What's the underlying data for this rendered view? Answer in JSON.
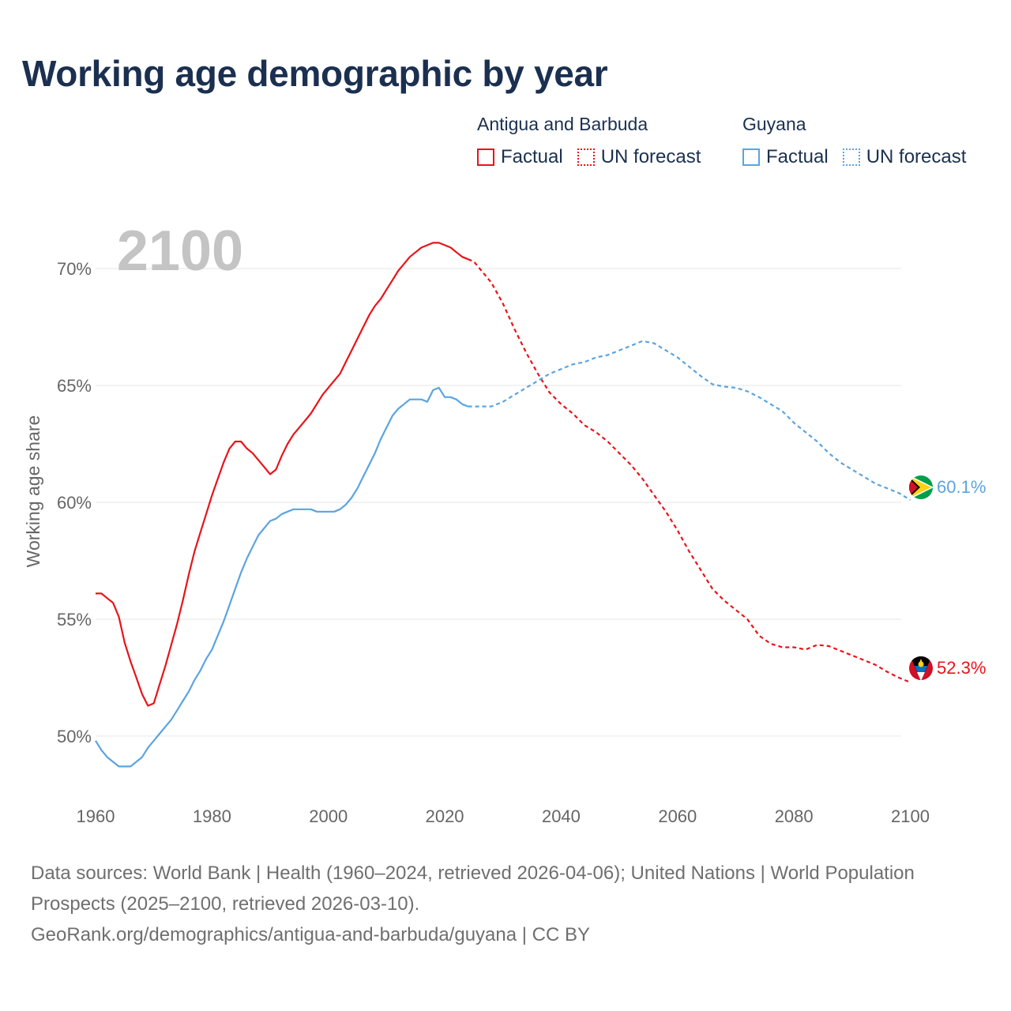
{
  "title": "Working age demographic by year",
  "legend": [
    {
      "country": "Antigua and Barbuda",
      "factual_label": "Factual",
      "forecast_label": "UN forecast",
      "color": "#e8141a"
    },
    {
      "country": "Guyana",
      "factual_label": "Factual",
      "forecast_label": "UN forecast",
      "color": "#5ba4e0"
    }
  ],
  "year_watermark": "2100",
  "chart_data": {
    "type": "line",
    "title": "Working age demographic by year",
    "xlabel": "",
    "ylabel": "Working age share",
    "xlim": [
      1960,
      2104
    ],
    "ylim": [
      47.7,
      72.5
    ],
    "x_ticks": [
      1960,
      1980,
      2000,
      2020,
      2040,
      2060,
      2080,
      2100
    ],
    "x_tick_labels": [
      "1960",
      "1980",
      "2000",
      "2020",
      "2040",
      "2060",
      "2080",
      "2100"
    ],
    "y_ticks": [
      50,
      55,
      60,
      65,
      70
    ],
    "y_tick_labels": [
      "50%",
      "55%",
      "60%",
      "65%",
      "70%"
    ],
    "grid": true,
    "forecast_start_year": 2025,
    "series": [
      {
        "name": "Antigua and Barbuda",
        "color": "#e8141a",
        "end_label": "52.3%",
        "flag": "antigua-and-barbuda-flag",
        "factual": [
          [
            1960,
            56.1
          ],
          [
            1961,
            56.1
          ],
          [
            1962,
            55.9
          ],
          [
            1963,
            55.7
          ],
          [
            1964,
            55.1
          ],
          [
            1965,
            54.0
          ],
          [
            1966,
            53.2
          ],
          [
            1967,
            52.5
          ],
          [
            1968,
            51.8
          ],
          [
            1969,
            51.3
          ],
          [
            1970,
            51.4
          ],
          [
            1971,
            52.2
          ],
          [
            1972,
            53.0
          ],
          [
            1973,
            53.9
          ],
          [
            1974,
            54.8
          ],
          [
            1975,
            55.8
          ],
          [
            1976,
            56.9
          ],
          [
            1977,
            57.9
          ],
          [
            1978,
            58.7
          ],
          [
            1979,
            59.5
          ],
          [
            1980,
            60.3
          ],
          [
            1981,
            61.0
          ],
          [
            1982,
            61.7
          ],
          [
            1983,
            62.3
          ],
          [
            1984,
            62.6
          ],
          [
            1985,
            62.6
          ],
          [
            1986,
            62.3
          ],
          [
            1987,
            62.1
          ],
          [
            1988,
            61.8
          ],
          [
            1989,
            61.5
          ],
          [
            1990,
            61.2
          ],
          [
            1991,
            61.4
          ],
          [
            1992,
            62.0
          ],
          [
            1993,
            62.5
          ],
          [
            1994,
            62.9
          ],
          [
            1995,
            63.2
          ],
          [
            1996,
            63.5
          ],
          [
            1997,
            63.8
          ],
          [
            1998,
            64.2
          ],
          [
            1999,
            64.6
          ],
          [
            2000,
            64.9
          ],
          [
            2001,
            65.2
          ],
          [
            2002,
            65.5
          ],
          [
            2003,
            66.0
          ],
          [
            2004,
            66.5
          ],
          [
            2005,
            67.0
          ],
          [
            2006,
            67.5
          ],
          [
            2007,
            68.0
          ],
          [
            2008,
            68.4
          ],
          [
            2009,
            68.7
          ],
          [
            2010,
            69.1
          ],
          [
            2011,
            69.5
          ],
          [
            2012,
            69.9
          ],
          [
            2013,
            70.2
          ],
          [
            2014,
            70.5
          ],
          [
            2015,
            70.7
          ],
          [
            2016,
            70.9
          ],
          [
            2017,
            71.0
          ],
          [
            2018,
            71.1
          ],
          [
            2019,
            71.1
          ],
          [
            2020,
            71.0
          ],
          [
            2021,
            70.9
          ],
          [
            2022,
            70.7
          ],
          [
            2023,
            70.5
          ],
          [
            2024,
            70.4
          ]
        ],
        "forecast": [
          [
            2024,
            70.4
          ],
          [
            2025,
            70.3
          ],
          [
            2026,
            70.0
          ],
          [
            2027,
            69.7
          ],
          [
            2028,
            69.4
          ],
          [
            2030,
            68.5
          ],
          [
            2032,
            67.4
          ],
          [
            2034,
            66.4
          ],
          [
            2036,
            65.5
          ],
          [
            2038,
            64.7
          ],
          [
            2040,
            64.2
          ],
          [
            2042,
            63.8
          ],
          [
            2044,
            63.3
          ],
          [
            2046,
            63.0
          ],
          [
            2048,
            62.6
          ],
          [
            2050,
            62.1
          ],
          [
            2052,
            61.6
          ],
          [
            2054,
            61.0
          ],
          [
            2056,
            60.3
          ],
          [
            2058,
            59.6
          ],
          [
            2060,
            58.8
          ],
          [
            2062,
            57.9
          ],
          [
            2064,
            57.1
          ],
          [
            2066,
            56.3
          ],
          [
            2068,
            55.8
          ],
          [
            2070,
            55.4
          ],
          [
            2072,
            55.0
          ],
          [
            2074,
            54.3
          ],
          [
            2076,
            53.95
          ],
          [
            2078,
            53.8
          ],
          [
            2080,
            53.8
          ],
          [
            2082,
            53.7
          ],
          [
            2084,
            53.9
          ],
          [
            2086,
            53.85
          ],
          [
            2088,
            53.65
          ],
          [
            2090,
            53.45
          ],
          [
            2092,
            53.25
          ],
          [
            2094,
            53.05
          ],
          [
            2096,
            52.75
          ],
          [
            2098,
            52.5
          ],
          [
            2100,
            52.3
          ]
        ]
      },
      {
        "name": "Guyana",
        "color": "#5ba4e0",
        "end_label": "60.1%",
        "flag": "guyana-flag",
        "factual": [
          [
            1960,
            49.8
          ],
          [
            1961,
            49.4
          ],
          [
            1962,
            49.1
          ],
          [
            1963,
            48.9
          ],
          [
            1964,
            48.7
          ],
          [
            1965,
            48.7
          ],
          [
            1966,
            48.7
          ],
          [
            1967,
            48.9
          ],
          [
            1968,
            49.1
          ],
          [
            1969,
            49.5
          ],
          [
            1970,
            49.8
          ],
          [
            1971,
            50.1
          ],
          [
            1972,
            50.4
          ],
          [
            1973,
            50.7
          ],
          [
            1974,
            51.1
          ],
          [
            1975,
            51.5
          ],
          [
            1976,
            51.9
          ],
          [
            1977,
            52.4
          ],
          [
            1978,
            52.8
          ],
          [
            1979,
            53.3
          ],
          [
            1980,
            53.7
          ],
          [
            1981,
            54.3
          ],
          [
            1982,
            54.9
          ],
          [
            1983,
            55.6
          ],
          [
            1984,
            56.3
          ],
          [
            1985,
            57.0
          ],
          [
            1986,
            57.6
          ],
          [
            1987,
            58.1
          ],
          [
            1988,
            58.6
          ],
          [
            1989,
            58.9
          ],
          [
            1990,
            59.2
          ],
          [
            1991,
            59.3
          ],
          [
            1992,
            59.5
          ],
          [
            1993,
            59.6
          ],
          [
            1994,
            59.7
          ],
          [
            1995,
            59.7
          ],
          [
            1996,
            59.7
          ],
          [
            1997,
            59.7
          ],
          [
            1998,
            59.6
          ],
          [
            1999,
            59.6
          ],
          [
            2000,
            59.6
          ],
          [
            2001,
            59.6
          ],
          [
            2002,
            59.7
          ],
          [
            2003,
            59.9
          ],
          [
            2004,
            60.2
          ],
          [
            2005,
            60.6
          ],
          [
            2006,
            61.1
          ],
          [
            2007,
            61.6
          ],
          [
            2008,
            62.1
          ],
          [
            2009,
            62.7
          ],
          [
            2010,
            63.2
          ],
          [
            2011,
            63.7
          ],
          [
            2012,
            64.0
          ],
          [
            2013,
            64.2
          ],
          [
            2014,
            64.4
          ],
          [
            2015,
            64.4
          ],
          [
            2016,
            64.4
          ],
          [
            2017,
            64.3
          ],
          [
            2018,
            64.8
          ],
          [
            2019,
            64.9
          ],
          [
            2020,
            64.5
          ],
          [
            2021,
            64.5
          ],
          [
            2022,
            64.4
          ],
          [
            2023,
            64.2
          ],
          [
            2024,
            64.1
          ]
        ],
        "forecast": [
          [
            2024,
            64.1
          ],
          [
            2026,
            64.1
          ],
          [
            2028,
            64.1
          ],
          [
            2030,
            64.3
          ],
          [
            2032,
            64.6
          ],
          [
            2034,
            64.9
          ],
          [
            2036,
            65.2
          ],
          [
            2038,
            65.5
          ],
          [
            2040,
            65.7
          ],
          [
            2042,
            65.9
          ],
          [
            2044,
            66.0
          ],
          [
            2046,
            66.2
          ],
          [
            2048,
            66.3
          ],
          [
            2050,
            66.5
          ],
          [
            2052,
            66.7
          ],
          [
            2054,
            66.9
          ],
          [
            2056,
            66.8
          ],
          [
            2058,
            66.5
          ],
          [
            2060,
            66.2
          ],
          [
            2062,
            65.8
          ],
          [
            2064,
            65.4
          ],
          [
            2066,
            65.05
          ],
          [
            2068,
            64.95
          ],
          [
            2070,
            64.9
          ],
          [
            2072,
            64.75
          ],
          [
            2074,
            64.5
          ],
          [
            2076,
            64.2
          ],
          [
            2078,
            63.9
          ],
          [
            2080,
            63.4
          ],
          [
            2082,
            63.0
          ],
          [
            2084,
            62.6
          ],
          [
            2086,
            62.1
          ],
          [
            2088,
            61.7
          ],
          [
            2090,
            61.4
          ],
          [
            2092,
            61.1
          ],
          [
            2094,
            60.8
          ],
          [
            2096,
            60.6
          ],
          [
            2098,
            60.4
          ],
          [
            2100,
            60.1
          ]
        ]
      }
    ]
  },
  "footer": {
    "line1": "Data sources: World Bank | Health (1960–2024, retrieved 2026-04-06); United Nations | World Population Prospects (2025–2100, retrieved 2026-03-10).",
    "line2": "GeoRank.org/demographics/antigua-and-barbuda/guyana | CC BY"
  }
}
